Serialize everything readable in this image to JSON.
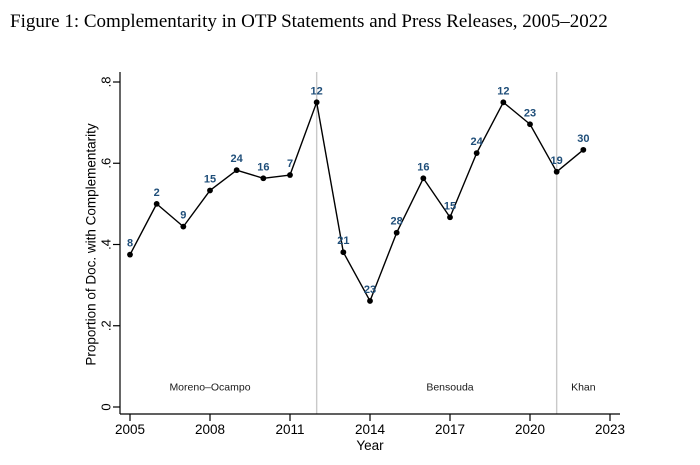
{
  "title": "Figure 1: Complementarity in OTP Statements and Press Releases, 2005–2022",
  "chart_data": {
    "type": "line",
    "title": "",
    "xlabel": "Year",
    "ylabel": "Proportion of Doc. with Complementarity",
    "x": [
      2005,
      2006,
      2007,
      2008,
      2009,
      2010,
      2011,
      2012,
      2013,
      2014,
      2015,
      2016,
      2017,
      2018,
      2019,
      2020,
      2021,
      2022
    ],
    "series": [
      {
        "name": "Proportion of Doc. with Complementarity",
        "values": [
          0.375,
          0.5,
          0.444,
          0.533,
          0.583,
          0.563,
          0.571,
          0.75,
          0.381,
          0.261,
          0.429,
          0.563,
          0.467,
          0.625,
          0.75,
          0.696,
          0.579,
          0.633
        ]
      }
    ],
    "point_labels": [
      "8",
      "2",
      "9",
      "15",
      "24",
      "16",
      "7",
      "12",
      "21",
      "23",
      "28",
      "16",
      "15",
      "24",
      "12",
      "23",
      "19",
      "30"
    ],
    "xticks": [
      2005,
      2008,
      2011,
      2014,
      2017,
      2020,
      2023
    ],
    "yticks": [
      0,
      0.2,
      0.4,
      0.6,
      0.8
    ],
    "ytick_labels": [
      "0",
      ".2",
      ".4",
      ".6",
      ".8"
    ],
    "xlim": [
      2004.6,
      2023.4
    ],
    "ylim": [
      0,
      0.8
    ],
    "grid": "off",
    "legend": "none",
    "vlines": [
      2012,
      2021
    ],
    "regions": [
      {
        "label": "Moreno–Ocampo",
        "x": 2008,
        "y": 0.05
      },
      {
        "label": "Bensouda",
        "x": 2017,
        "y": 0.05
      },
      {
        "label": "Khan",
        "x": 2022,
        "y": 0.05
      }
    ],
    "colors": {
      "line": "#000000",
      "marker": "#000000",
      "point_label": "#1f4e79",
      "vline": "#c9c9c9",
      "axis": "#000000",
      "region_label": "#1a1a1a",
      "background": "#ffffff"
    }
  }
}
